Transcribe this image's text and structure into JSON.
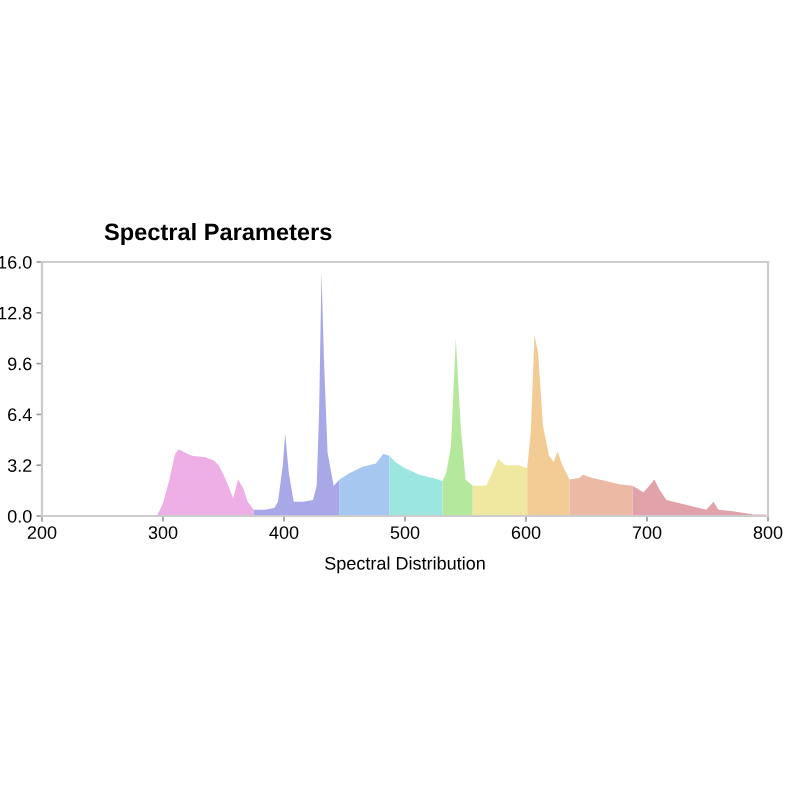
{
  "chart_data": {
    "type": "area",
    "title": "Spectral Parameters",
    "xlabel": "Spectral Distribution",
    "xlim": [
      200,
      800
    ],
    "ylim": [
      0,
      16
    ],
    "xticks": [
      200,
      300,
      400,
      500,
      600,
      700,
      800
    ],
    "yticks": [
      {
        "value": 0,
        "label": "0.0"
      },
      3.2,
      6.4,
      9.6,
      12.8,
      {
        "value": 16,
        "label": "16.0"
      }
    ],
    "grid": false,
    "legend": false,
    "series": [
      {
        "color": "#eeaee6",
        "x": [
          295,
          300,
          305,
          310,
          313,
          318,
          324,
          335,
          342,
          346,
          350,
          354,
          358,
          362,
          366,
          370,
          375
        ],
        "values": [
          0,
          0.8,
          2.2,
          3.9,
          4.2,
          4.0,
          3.8,
          3.7,
          3.5,
          3.2,
          2.6,
          1.9,
          1.1,
          2.3,
          1.8,
          0.9,
          0.4
        ]
      },
      {
        "color": "#a8a8e8",
        "x": [
          375,
          384,
          392,
          395,
          399,
          401,
          404,
          408,
          416,
          424,
          427,
          429,
          431,
          433,
          436,
          441,
          446
        ],
        "values": [
          0.4,
          0.4,
          0.5,
          0.9,
          3.2,
          5.2,
          2.7,
          0.9,
          0.9,
          1.0,
          1.9,
          6.5,
          15.4,
          9.9,
          4.0,
          1.9,
          2.3
        ]
      },
      {
        "color": "#a6c8f0",
        "x": [
          446,
          454,
          465,
          476,
          482,
          487
        ],
        "values": [
          2.3,
          2.7,
          3.1,
          3.3,
          3.9,
          3.8
        ]
      },
      {
        "color": "#9ce6e2",
        "x": [
          487,
          492,
          500,
          512,
          523,
          531
        ],
        "values": [
          3.8,
          3.4,
          3.0,
          2.6,
          2.4,
          2.2
        ]
      },
      {
        "color": "#b4e89c",
        "x": [
          531,
          534,
          538,
          542,
          546,
          550,
          556
        ],
        "values": [
          2.2,
          2.7,
          4.4,
          11.2,
          5.7,
          2.3,
          1.9
        ]
      },
      {
        "color": "#f0e8a0",
        "x": [
          556,
          567,
          572,
          577,
          583,
          594,
          601
        ],
        "values": [
          1.9,
          1.9,
          2.7,
          3.6,
          3.2,
          3.2,
          3.0
        ]
      },
      {
        "color": "#f2cc94",
        "x": [
          601,
          604,
          607,
          610,
          614,
          619,
          623,
          626,
          630,
          636
        ],
        "values": [
          3.0,
          5.3,
          11.4,
          10.3,
          5.7,
          3.8,
          3.4,
          4.1,
          3.2,
          2.3
        ]
      },
      {
        "color": "#ecbaa4",
        "x": [
          636,
          644,
          647,
          655,
          666,
          677,
          688
        ],
        "values": [
          2.3,
          2.4,
          2.6,
          2.4,
          2.2,
          2.0,
          1.9
        ]
      },
      {
        "color": "#e2a2aa",
        "x": [
          688,
          697,
          702,
          706,
          710,
          716,
          727,
          738,
          749,
          755,
          759,
          771,
          788,
          798
        ],
        "values": [
          1.9,
          1.5,
          1.9,
          2.3,
          1.7,
          1.0,
          0.8,
          0.6,
          0.4,
          0.9,
          0.4,
          0.3,
          0.1,
          0.1
        ]
      }
    ]
  }
}
